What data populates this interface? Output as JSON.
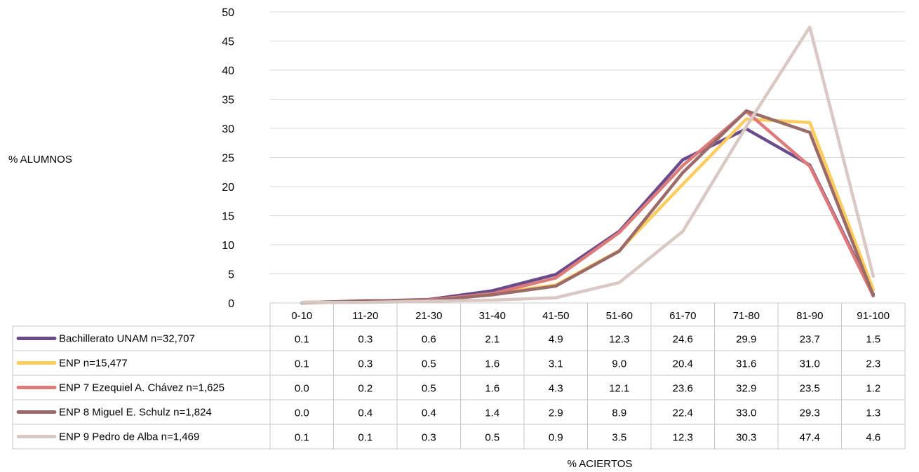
{
  "chart_data": {
    "type": "line",
    "title": "",
    "xlabel": "% ACIERTOS",
    "ylabel": "% ALUMNOS",
    "ylim": [
      0,
      50
    ],
    "yticks": [
      0,
      5,
      10,
      15,
      20,
      25,
      30,
      35,
      40,
      45,
      50
    ],
    "grid": true,
    "legend": "data-table",
    "categories": [
      "0-10",
      "11-20",
      "21-30",
      "31-40",
      "41-50",
      "51-60",
      "61-70",
      "71-80",
      "81-90",
      "91-100"
    ],
    "series": [
      {
        "name": "Bachillerato UNAM n=32,707",
        "color": "#6a4c8c",
        "values": [
          0.1,
          0.3,
          0.6,
          2.1,
          4.9,
          12.3,
          24.6,
          29.9,
          23.7,
          1.5
        ],
        "labels": [
          "0.1",
          "0.3",
          "0.6",
          "2.1",
          "4.9",
          "12.3",
          "24.6",
          "29.9",
          "23.7",
          "1.5"
        ]
      },
      {
        "name": "ENP  n=15,477",
        "color": "#fccd5e",
        "values": [
          0.1,
          0.3,
          0.5,
          1.6,
          3.1,
          9.0,
          20.4,
          31.6,
          31.0,
          2.3
        ],
        "labels": [
          "0.1",
          "0.3",
          "0.5",
          "1.6",
          "3.1",
          "9.0",
          "20.4",
          "31.6",
          "31.0",
          "2.3"
        ]
      },
      {
        "name": "ENP 7 Ezequiel A. Chávez n=1,625",
        "color": "#df7a7a",
        "values": [
          0.0,
          0.2,
          0.5,
          1.6,
          4.3,
          12.1,
          23.6,
          32.9,
          23.5,
          1.2
        ],
        "labels": [
          "0.0",
          "0.2",
          "0.5",
          "1.6",
          "4.3",
          "12.1",
          "23.6",
          "32.9",
          "23.5",
          "1.2"
        ]
      },
      {
        "name": "ENP 8 Miguel E. Schulz n=1,824",
        "color": "#9b6b69",
        "values": [
          0.0,
          0.4,
          0.4,
          1.4,
          2.9,
          8.9,
          22.4,
          33.0,
          29.3,
          1.3
        ],
        "labels": [
          "0.0",
          "0.4",
          "0.4",
          "1.4",
          "2.9",
          "8.9",
          "22.4",
          "33.0",
          "29.3",
          "1.3"
        ]
      },
      {
        "name": "ENP 9 Pedro de Alba n=1,469",
        "color": "#dac8c4",
        "values": [
          0.1,
          0.1,
          0.3,
          0.5,
          0.9,
          3.5,
          12.3,
          30.3,
          47.4,
          4.6
        ],
        "labels": [
          "0.1",
          "0.1",
          "0.3",
          "0.5",
          "0.9",
          "3.5",
          "12.3",
          "30.3",
          "47.4",
          "4.6"
        ]
      }
    ]
  }
}
